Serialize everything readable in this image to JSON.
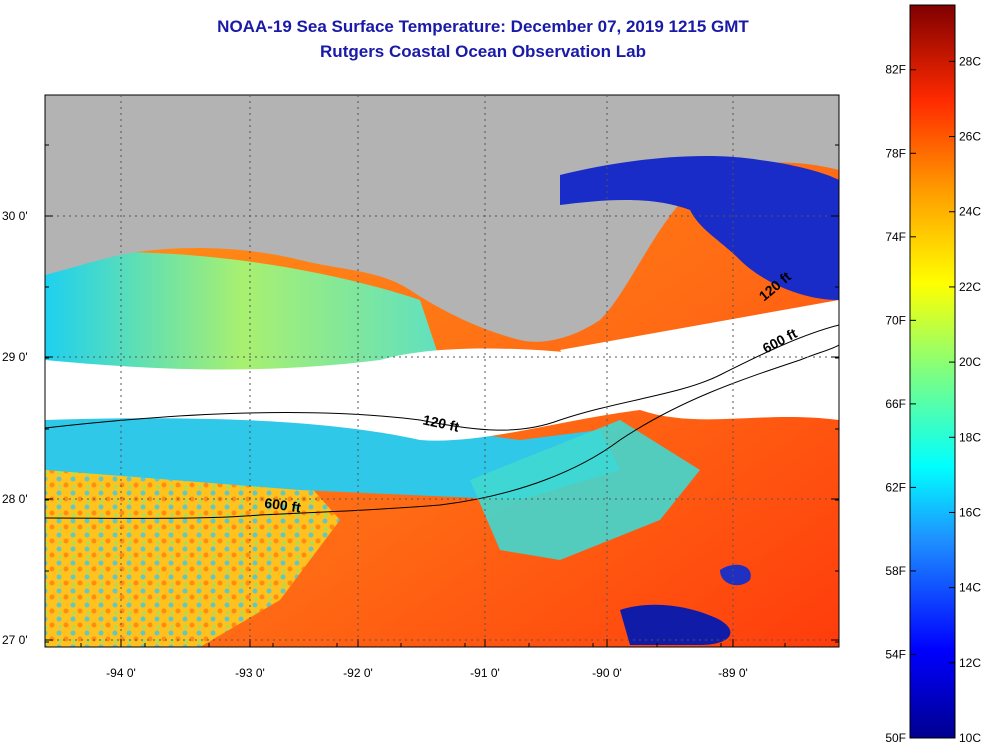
{
  "header": {
    "title_line1": "NOAA-19 Sea Surface Temperature:  December 07, 2019 1215 GMT",
    "title_line2": "Rutgers Coastal Ocean Observation Lab"
  },
  "map": {
    "lon_ticks": [
      "-94 0'",
      "-93 0'",
      "-92 0'",
      "-91 0'",
      "-90 0'",
      "-89 0'"
    ],
    "lat_ticks": [
      "30 0'",
      "29 0'",
      "28 0'",
      "27 0'"
    ],
    "contours": [
      {
        "label": "120 ft",
        "rotation": 12
      },
      {
        "label": "600 ft",
        "rotation": 8
      },
      {
        "label": "120 ft",
        "rotation": -40
      },
      {
        "label": "600 ft",
        "rotation": -28
      }
    ],
    "colors": {
      "land": "#b3b3b3",
      "cloud": "#ffffff",
      "warm": "#ff5a10",
      "cool": "#22d8f0",
      "cold": "#0010a0"
    }
  },
  "colorbar": {
    "fahrenheit_labels": [
      "82F",
      "78F",
      "74F",
      "70F",
      "66F",
      "62F",
      "58F",
      "54F",
      "50F"
    ],
    "celsius_labels": [
      "28C",
      "26C",
      "24C",
      "22C",
      "20C",
      "18C",
      "16C",
      "14C",
      "12C",
      "10C"
    ],
    "min_c": 10,
    "max_c": 29.5
  }
}
